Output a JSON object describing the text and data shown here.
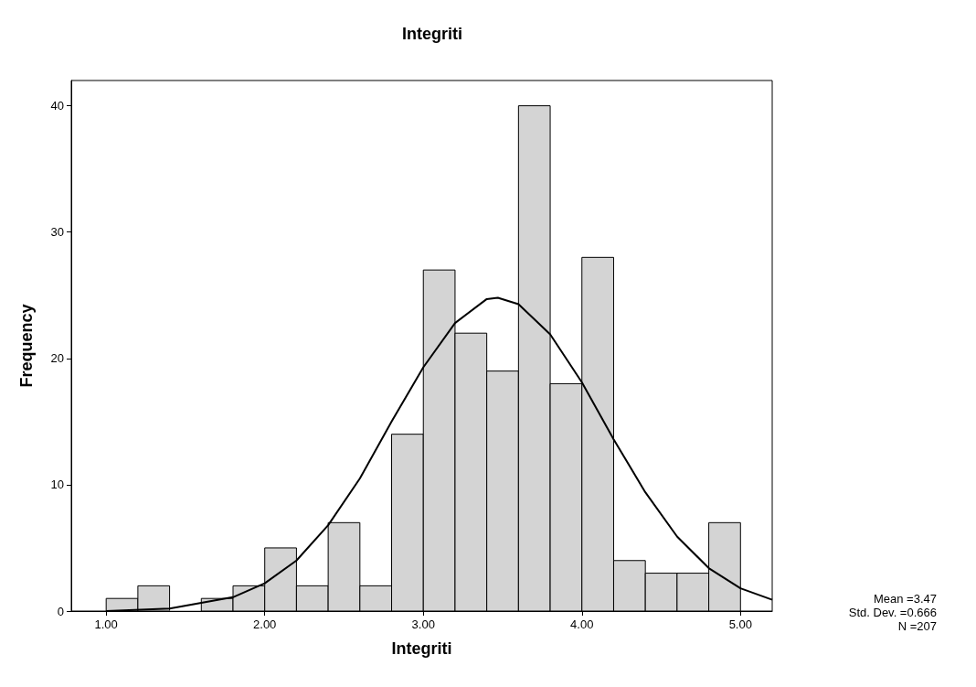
{
  "chart_data": {
    "type": "histogram",
    "title": "Integriti",
    "xlabel": "Integriti",
    "ylabel": "Frequency",
    "bins": [
      1.0,
      1.2,
      1.4,
      1.6,
      1.8,
      2.0,
      2.2,
      2.4,
      2.6,
      2.8,
      3.0,
      3.2,
      3.4,
      3.6,
      3.8,
      4.0,
      4.2,
      4.4,
      4.6,
      4.8,
      5.0
    ],
    "values": [
      1,
      2,
      0,
      1,
      2,
      5,
      2,
      7,
      2,
      14,
      27,
      22,
      19,
      40,
      18,
      28,
      4,
      3,
      3,
      7
    ],
    "color": "#d4d4d4",
    "series": [
      {
        "type": "line",
        "color": "#000000",
        "x": [
          1.0,
          1.4,
          1.8,
          2.0,
          2.2,
          2.4,
          2.6,
          2.8,
          3.0,
          3.2,
          3.4,
          3.47,
          3.6,
          3.8,
          4.0,
          4.2,
          4.4,
          4.6,
          4.8,
          5.0,
          5.2
        ],
        "values": [
          0.0,
          0.2,
          1.1,
          2.2,
          4.0,
          6.8,
          10.5,
          15.0,
          19.3,
          22.8,
          24.7,
          24.8,
          24.3,
          21.9,
          18.1,
          13.6,
          9.4,
          5.9,
          3.4,
          1.8,
          0.9
        ]
      }
    ],
    "xlim": [
      0.78,
      5.2
    ],
    "ylim": [
      0,
      42
    ],
    "xticks": [
      {
        "value": 1,
        "label": "1.00"
      },
      {
        "value": 2,
        "label": "2.00"
      },
      {
        "value": 3,
        "label": "3.00"
      },
      {
        "value": 4,
        "label": "4.00"
      },
      {
        "value": 5,
        "label": "5.00"
      }
    ],
    "yticks": [
      0,
      10,
      20,
      30,
      40
    ],
    "grid": false,
    "marker": "none",
    "line_style": "solid",
    "annotations": [
      "Mean =3.47",
      "Std. Dev. =0.666",
      "N =207"
    ]
  }
}
